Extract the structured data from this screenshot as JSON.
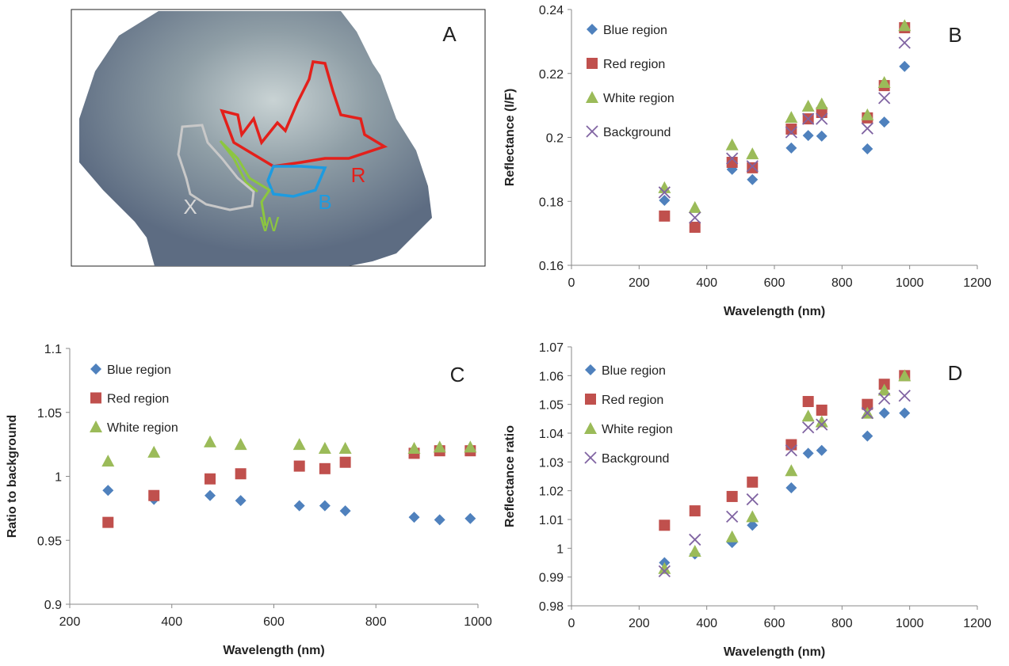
{
  "image_panel": {
    "panel_label": "A",
    "region_labels": [
      "X",
      "W",
      "B",
      "R"
    ]
  },
  "chart_data": [
    {
      "type": "scatter",
      "panel_label": "B",
      "xlabel": "Wavelength (nm)",
      "ylabel": "Reflectance (I/F)",
      "x": [
        275,
        365,
        475,
        535,
        650,
        700,
        740,
        875,
        925,
        985
      ],
      "xlim": [
        0,
        1200
      ],
      "xticks": [
        0,
        200,
        400,
        600,
        800,
        1000,
        1200
      ],
      "ylim": [
        0.16,
        0.24
      ],
      "yticks": [
        0.16,
        0.18,
        0.2,
        0.22,
        0.24
      ],
      "series": [
        {
          "name": "Blue region",
          "color": "#4f81bd",
          "marker": "diamond",
          "values": [
            0.1803,
            0.1719,
            0.19,
            0.1868,
            0.1967,
            0.2006,
            0.2004,
            0.1964,
            0.2048,
            0.2222
          ]
        },
        {
          "name": "Red region",
          "color": "#c0504d",
          "marker": "square",
          "values": [
            0.1754,
            0.1719,
            0.1922,
            0.1905,
            0.2026,
            0.2058,
            0.2078,
            0.2061,
            0.2162,
            0.2343
          ]
        },
        {
          "name": "White region",
          "color": "#9bbb59",
          "marker": "triangle",
          "values": [
            0.1843,
            0.1781,
            0.1977,
            0.1949,
            0.2063,
            0.2098,
            0.2105,
            0.2071,
            0.2172,
            0.235
          ]
        },
        {
          "name": "Background",
          "color": "#8064a2",
          "marker": "x",
          "values": [
            0.1828,
            0.1749,
            0.1934,
            0.191,
            0.2016,
            0.2058,
            0.2058,
            0.2028,
            0.2123,
            0.2296
          ]
        }
      ]
    },
    {
      "type": "scatter",
      "panel_label": "C",
      "xlabel": "Wavelength (nm)",
      "ylabel": "Ratio to background",
      "x": [
        275,
        365,
        475,
        535,
        650,
        700,
        740,
        875,
        925,
        985
      ],
      "xlim": [
        200,
        1000
      ],
      "xticks": [
        200,
        400,
        600,
        800,
        1000
      ],
      "ylim": [
        0.9,
        1.1
      ],
      "yticks": [
        0.9,
        0.95,
        1,
        1.05,
        1.1
      ],
      "series": [
        {
          "name": "Blue region",
          "color": "#4f81bd",
          "marker": "diamond",
          "values": [
            0.989,
            0.982,
            0.985,
            0.981,
            0.977,
            0.977,
            0.973,
            0.968,
            0.966,
            0.967
          ]
        },
        {
          "name": "Red region",
          "color": "#c0504d",
          "marker": "square",
          "values": [
            0.964,
            0.985,
            0.998,
            1.002,
            1.008,
            1.006,
            1.011,
            1.018,
            1.02,
            1.02
          ]
        },
        {
          "name": "White region",
          "color": "#9bbb59",
          "marker": "triangle",
          "values": [
            1.012,
            1.019,
            1.027,
            1.025,
            1.025,
            1.022,
            1.022,
            1.022,
            1.023,
            1.023
          ]
        }
      ]
    },
    {
      "type": "scatter",
      "panel_label": "D",
      "xlabel": "Wavelength (nm)",
      "ylabel": "Reflectance ratio",
      "x": [
        275,
        365,
        475,
        535,
        650,
        700,
        740,
        875,
        925,
        985
      ],
      "xlim": [
        0,
        1200
      ],
      "xticks": [
        0,
        200,
        400,
        600,
        800,
        1000,
        1200
      ],
      "ylim": [
        0.98,
        1.07
      ],
      "yticks": [
        0.98,
        0.99,
        1,
        1.01,
        1.02,
        1.03,
        1.04,
        1.05,
        1.06,
        1.07
      ],
      "series": [
        {
          "name": "Blue region",
          "color": "#4f81bd",
          "marker": "diamond",
          "values": [
            0.995,
            0.998,
            1.002,
            1.008,
            1.021,
            1.033,
            1.034,
            1.039,
            1.047,
            1.047
          ]
        },
        {
          "name": "Red region",
          "color": "#c0504d",
          "marker": "square",
          "values": [
            1.008,
            1.013,
            1.018,
            1.023,
            1.036,
            1.051,
            1.048,
            1.05,
            1.057,
            1.06
          ]
        },
        {
          "name": "White region",
          "color": "#9bbb59",
          "marker": "triangle",
          "values": [
            0.993,
            0.999,
            1.004,
            1.011,
            1.027,
            1.046,
            1.044,
            1.047,
            1.055,
            1.06
          ]
        },
        {
          "name": "Background",
          "color": "#8064a2",
          "marker": "x",
          "values": [
            0.992,
            1.003,
            1.011,
            1.017,
            1.034,
            1.042,
            1.043,
            1.047,
            1.052,
            1.053
          ]
        }
      ]
    }
  ]
}
